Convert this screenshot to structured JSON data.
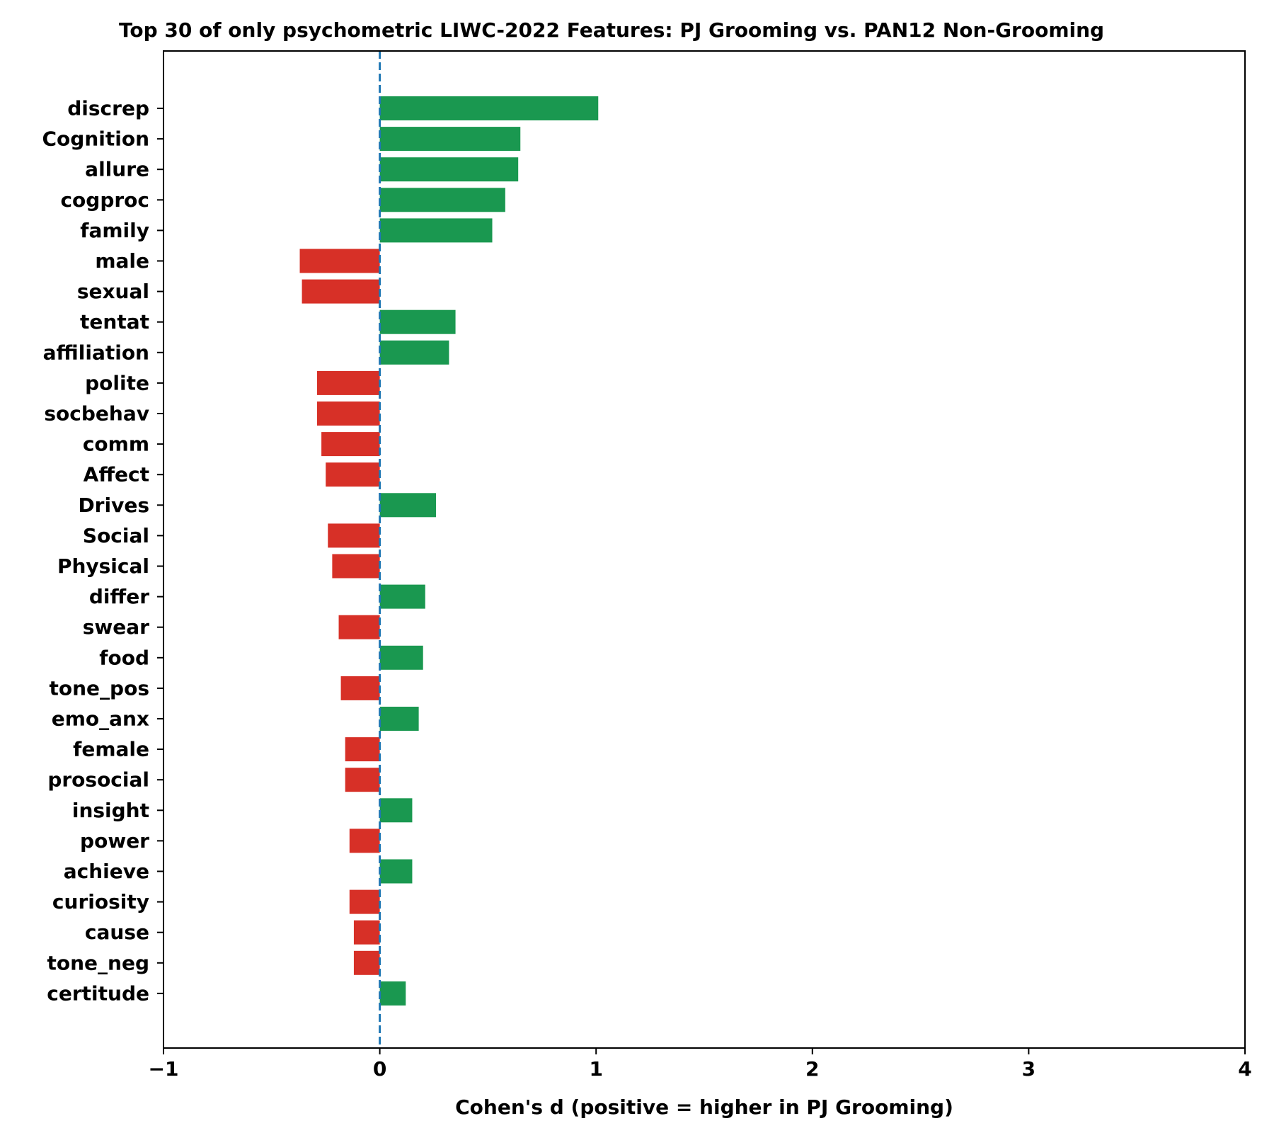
{
  "chart_data": {
    "type": "bar",
    "orientation": "horizontal",
    "title": "Top 30 of only psychometric LIWC-2022 Features: PJ Grooming vs. PAN12 Non-Grooming",
    "xlabel": "Cohen's d (positive = higher in PJ Grooming)",
    "ylabel": "",
    "xlim": [
      -1,
      4
    ],
    "xticks": [
      -1,
      0,
      1,
      2,
      3,
      4
    ],
    "xtick_labels": [
      "−1",
      "0",
      "1",
      "2",
      "3",
      "4"
    ],
    "grid": false,
    "reference_line": {
      "x": 0,
      "style": "dashed",
      "color": "#1f77b4"
    },
    "colors": {
      "positive": "#1a9850",
      "negative": "#d73027"
    },
    "categories": [
      "discrep",
      "Cognition",
      "allure",
      "cogproc",
      "family",
      "male",
      "sexual",
      "tentat",
      "affiliation",
      "polite",
      "socbehav",
      "comm",
      "Affect",
      "Drives",
      "Social",
      "Physical",
      "differ",
      "swear",
      "food",
      "tone_pos",
      "emo_anx",
      "female",
      "prosocial",
      "insight",
      "power",
      "achieve",
      "curiosity",
      "cause",
      "tone_neg",
      "certitude"
    ],
    "values": [
      1.01,
      0.65,
      0.64,
      0.58,
      0.52,
      -0.37,
      -0.36,
      0.35,
      0.32,
      -0.29,
      -0.29,
      -0.27,
      -0.25,
      0.26,
      -0.24,
      -0.22,
      0.21,
      -0.19,
      0.2,
      -0.18,
      0.18,
      -0.16,
      -0.16,
      0.15,
      -0.14,
      0.15,
      -0.14,
      -0.12,
      -0.12,
      0.12
    ]
  }
}
